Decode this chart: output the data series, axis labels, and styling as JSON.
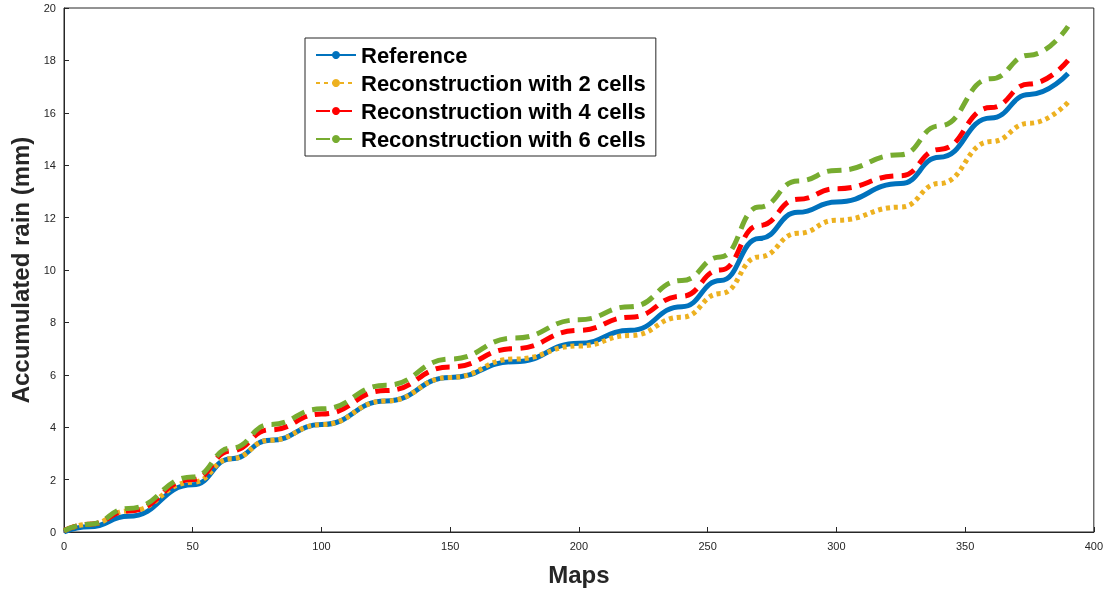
{
  "chart_data": {
    "type": "line",
    "xlabel": "Maps",
    "ylabel": "Accumulated rain (mm)",
    "xlim": [
      0,
      400
    ],
    "xticks": [
      0,
      50,
      100,
      150,
      200,
      250,
      300,
      350,
      400
    ],
    "ylim": [
      0,
      20
    ],
    "yticks": [
      0,
      2,
      4,
      6,
      8,
      10,
      12,
      14,
      16,
      18,
      20
    ],
    "grid": false,
    "legend": "top left",
    "marker": "none",
    "x": [
      0,
      10,
      25,
      50,
      65,
      80,
      100,
      125,
      150,
      175,
      200,
      220,
      240,
      255,
      270,
      285,
      300,
      325,
      340,
      360,
      375,
      390
    ],
    "series": [
      {
        "name": "Reference",
        "color": "#0072bd",
        "line_style": "solid",
        "values": [
          0,
          0.2,
          0.6,
          1.8,
          2.8,
          3.5,
          4.1,
          5.0,
          5.9,
          6.5,
          7.2,
          7.7,
          8.6,
          9.6,
          11.2,
          12.2,
          12.6,
          13.3,
          14.3,
          15.8,
          16.7,
          17.5
        ]
      },
      {
        "name": "Reconstruction with 2 cells",
        "color": "#edb120",
        "line_style": "dotted",
        "values": [
          0.05,
          0.3,
          0.8,
          1.9,
          2.8,
          3.5,
          4.1,
          5.0,
          5.9,
          6.6,
          7.1,
          7.5,
          8.2,
          9.1,
          10.5,
          11.4,
          11.9,
          12.4,
          13.3,
          14.9,
          15.6,
          16.4
        ]
      },
      {
        "name": "Reconstruction with 4 cells",
        "color": "#ff0000",
        "line_style": "dashed",
        "values": [
          0.05,
          0.3,
          0.8,
          2.0,
          3.1,
          3.9,
          4.5,
          5.4,
          6.3,
          7.0,
          7.7,
          8.2,
          9.0,
          10.0,
          11.7,
          12.7,
          13.1,
          13.6,
          14.6,
          16.2,
          17.1,
          18.0
        ]
      },
      {
        "name": "Reconstruction with 6 cells",
        "color": "#77ac30",
        "line_style": "dashed",
        "values": [
          0.05,
          0.3,
          0.9,
          2.1,
          3.2,
          4.1,
          4.7,
          5.6,
          6.6,
          7.4,
          8.1,
          8.6,
          9.6,
          10.5,
          12.4,
          13.4,
          13.8,
          14.4,
          15.5,
          17.3,
          18.2,
          19.3
        ]
      }
    ]
  }
}
